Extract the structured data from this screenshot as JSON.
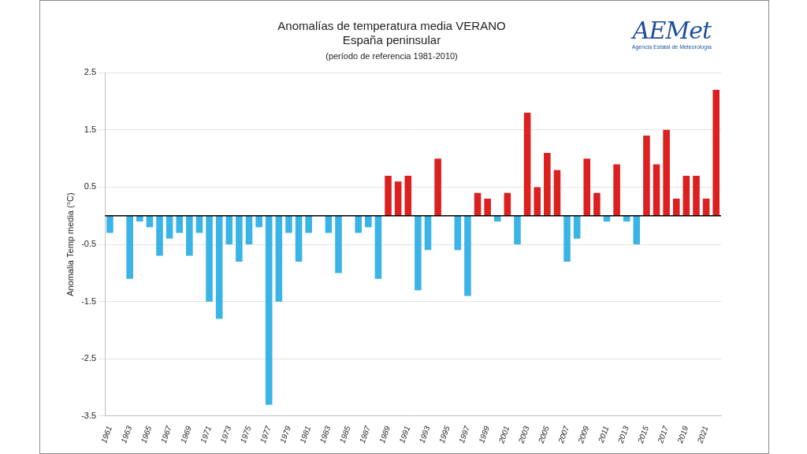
{
  "chart_data": {
    "type": "bar",
    "title": [
      "Anomalías de temperatura media VERANO",
      "España peninsular"
    ],
    "subtitle": "(período de referencia 1981-2010)",
    "y_label": "Anomalia Temp media (°C)",
    "annotations": [
      "AEMet",
      "Agencia Estatal de Meteorología"
    ],
    "categories": [
      "1961",
      null,
      "1963",
      null,
      "1965",
      null,
      "1967",
      null,
      "1969",
      null,
      "1971",
      null,
      "1973",
      null,
      "1975",
      null,
      "1977",
      null,
      "1979",
      null,
      "1981",
      null,
      "1983",
      null,
      "1985",
      null,
      "1987",
      null,
      "1989",
      null,
      "1991",
      null,
      "1993",
      null,
      "1995",
      null,
      "1997",
      null,
      "1999",
      null,
      "2001",
      null,
      "2003",
      null,
      "2005",
      null,
      "2007",
      null,
      "2009",
      null,
      "2011",
      null,
      "2013",
      null,
      "2015",
      null,
      "2017",
      null,
      "2019",
      null,
      "2021",
      null
    ],
    "values": [
      -0.3,
      0,
      -1.1,
      -0.1,
      -0.2,
      -0.7,
      -0.4,
      -0.3,
      -0.7,
      -0.3,
      -1.5,
      -1.8,
      -0.5,
      -0.8,
      -0.5,
      -0.2,
      -3.3,
      -1.5,
      -0.3,
      -0.8,
      -0.3,
      0,
      -0.3,
      -1.0,
      0,
      -0.3,
      -0.2,
      -1.1,
      0.7,
      0.6,
      0.7,
      -1.3,
      -0.6,
      1.0,
      0,
      -0.6,
      -1.4,
      0.4,
      0.3,
      -0.1,
      0.4,
      -0.5,
      1.8,
      0.5,
      1.1,
      0.8,
      -0.8,
      -0.4,
      1.0,
      0.4,
      -0.1,
      0.9,
      -0.1,
      -0.5,
      1.4,
      0.9,
      1.5,
      0.3,
      0.7,
      0.7,
      0.3,
      2.2
    ],
    "colors": [
      "#3ab4e6",
      "#3ab4e6",
      "#3ab4e6",
      "#3ab4e6",
      "#3ab4e6",
      "#3ab4e6",
      "#3ab4e6",
      "#3ab4e6",
      "#3ab4e6",
      "#3ab4e6",
      "#3ab4e6",
      "#3ab4e6",
      "#3ab4e6",
      "#3ab4e6",
      "#3ab4e6",
      "#3ab4e6",
      "#3ab4e6",
      "#3ab4e6",
      "#3ab4e6",
      "#3ab4e6",
      "#3ab4e6",
      "#3ab4e6",
      "#3ab4e6",
      "#3ab4e6",
      "#3ab4e6",
      "#3ab4e6",
      "#3ab4e6",
      "#3ab4e6",
      "#dc1f1f",
      "#dc1f1f",
      "#dc1f1f",
      "#3ab4e6",
      "#3ab4e6",
      "#dc1f1f",
      "#3ab4e6",
      "#3ab4e6",
      "#3ab4e6",
      "#dc1f1f",
      "#dc1f1f",
      "#3ab4e6",
      "#dc1f1f",
      "#3ab4e6",
      "#dc1f1f",
      "#dc1f1f",
      "#dc1f1f",
      "#dc1f1f",
      "#3ab4e6",
      "#3ab4e6",
      "#dc1f1f",
      "#dc1f1f",
      "#3ab4e6",
      "#dc1f1f",
      "#3ab4e6",
      "#3ab4e6",
      "#dc1f1f",
      "#dc1f1f",
      "#dc1f1f",
      "#dc1f1f",
      "#dc1f1f",
      "#dc1f1f",
      "#dc1f1f",
      "#dc1f1f"
    ],
    "ylim": [
      -3.5,
      2.5
    ],
    "yticks": [
      -3.5,
      -2.5,
      -1.5,
      -0.5,
      0.5,
      1.5,
      2.5
    ],
    "grid": true
  }
}
